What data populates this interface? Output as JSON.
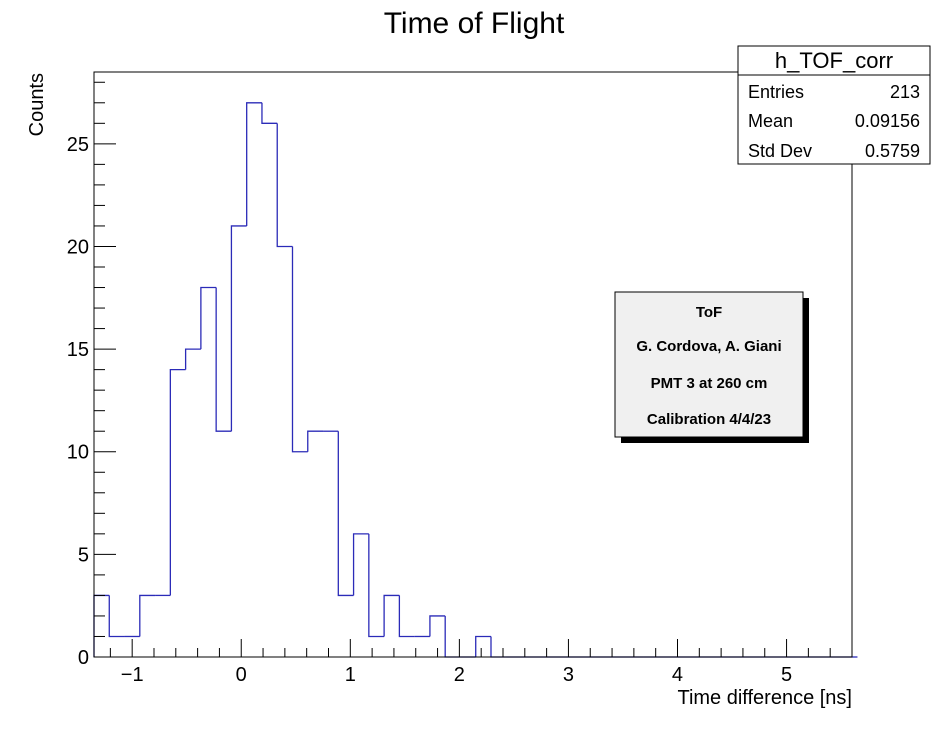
{
  "chart_data": {
    "type": "histogram",
    "title": "Time of Flight",
    "xlabel": "Time difference [ns]",
    "ylabel": "Counts",
    "xlim": [
      -1.35,
      5.6
    ],
    "ylim": [
      0,
      28.5
    ],
    "bin_width": 0.14,
    "bin_start": -1.35,
    "values": [
      3,
      1,
      1,
      3,
      3,
      14,
      15,
      18,
      11,
      21,
      27,
      26,
      20,
      10,
      11,
      11,
      3,
      6,
      1,
      3,
      1,
      1,
      2,
      0,
      0,
      1,
      0,
      0,
      0,
      0,
      0,
      0,
      0,
      0,
      0,
      0,
      0,
      0,
      0,
      0,
      0,
      0,
      0,
      0,
      0,
      0,
      0,
      0,
      0,
      0
    ],
    "x_ticks": [
      -1,
      0,
      1,
      2,
      3,
      4,
      5
    ],
    "x_tick_labels": [
      "−1",
      "0",
      "1",
      "2",
      "3",
      "4",
      "5"
    ],
    "y_ticks": [
      0,
      5,
      10,
      15,
      20,
      25
    ],
    "y_tick_labels": [
      "0",
      "5",
      "10",
      "15",
      "20",
      "25"
    ],
    "line_color": "#2b2bb8"
  },
  "stats_box": {
    "name": "h_TOF_corr",
    "rows": [
      {
        "label": "Entries",
        "value": "213"
      },
      {
        "label": "Mean",
        "value": "0.09156"
      },
      {
        "label": "Std Dev",
        "value": "0.5759"
      }
    ]
  },
  "info_box": {
    "lines": [
      "ToF",
      "G. Cordova, A. Giani",
      "PMT 3 at 260 cm",
      "Calibration 4/4/23"
    ]
  }
}
